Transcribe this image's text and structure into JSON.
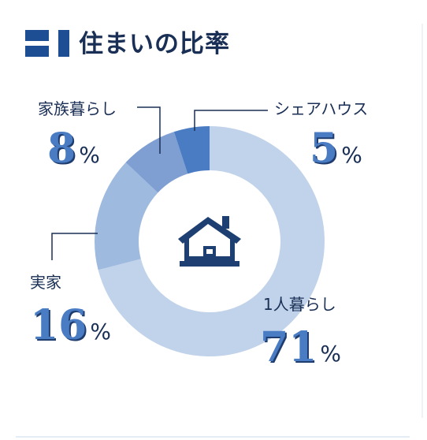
{
  "header": {
    "title": "住まいの比率",
    "accent_color": "#1d4e93"
  },
  "center_icon": "house-icon",
  "chart_data": {
    "type": "pie",
    "style": "donut",
    "title": "住まいの比率",
    "unit": "%",
    "slices": [
      {
        "label": "1人暮らし",
        "value": 71,
        "value_text": "71",
        "color": "#c0d3ea"
      },
      {
        "label": "実家",
        "value": 16,
        "value_text": "16",
        "color": "#9fbadf"
      },
      {
        "label": "家族暮らし",
        "value": 8,
        "value_text": "8",
        "color": "#7f9fd2"
      },
      {
        "label": "シェアハウス",
        "value": 5,
        "value_text": "5",
        "color": "#4a7cc4"
      }
    ]
  }
}
